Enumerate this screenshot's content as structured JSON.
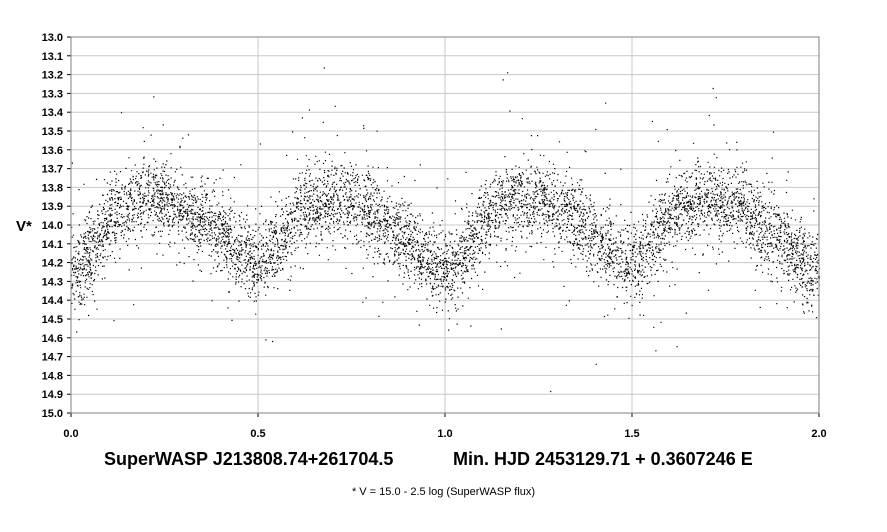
{
  "chart_data": {
    "type": "scatter",
    "title": "SuperWASP J213808.74+261704.5",
    "ephemeris": "Min. HJD 2453129.71 + 0.3607246 E",
    "xlabel": "",
    "ylabel": "V*",
    "footnote": "* V = 15.0 - 2.5 log (SuperWASP flux)",
    "xlim": [
      0.0,
      2.0
    ],
    "ylim": [
      13.0,
      15.0
    ],
    "y_inverted": true,
    "grid": true,
    "x_ticks": [
      "0.0",
      "0.5",
      "1.0",
      "1.5",
      "2.0"
    ],
    "y_ticks": [
      "13.0",
      "13.1",
      "13.2",
      "13.3",
      "13.4",
      "13.5",
      "13.6",
      "13.7",
      "13.8",
      "13.9",
      "14.0",
      "14.1",
      "14.2",
      "14.3",
      "14.4",
      "14.5",
      "14.6",
      "14.7",
      "14.8",
      "14.9",
      "15.0"
    ],
    "marker_color": "#000000",
    "light_curve": {
      "phase": [
        0.0,
        0.05,
        0.1,
        0.15,
        0.2,
        0.25,
        0.3,
        0.35,
        0.4,
        0.45,
        0.5,
        0.55,
        0.6,
        0.65,
        0.7,
        0.75,
        0.8,
        0.85,
        0.9,
        0.95,
        1.0,
        1.05,
        1.1,
        1.15,
        1.2,
        1.25,
        1.3,
        1.35,
        1.4,
        1.45,
        1.5,
        1.55,
        1.6,
        1.65,
        1.7,
        1.75,
        1.8,
        1.85,
        1.9,
        1.95,
        2.0
      ],
      "mean_v": [
        14.26,
        14.14,
        13.98,
        13.9,
        13.86,
        13.87,
        13.92,
        13.98,
        14.06,
        14.14,
        14.2,
        14.1,
        13.96,
        13.89,
        13.86,
        13.88,
        13.93,
        14.0,
        14.08,
        14.18,
        14.26,
        14.14,
        13.98,
        13.9,
        13.86,
        13.87,
        13.92,
        13.98,
        14.06,
        14.14,
        14.2,
        14.1,
        13.96,
        13.89,
        13.86,
        13.88,
        13.93,
        14.0,
        14.08,
        14.18,
        14.26
      ]
    },
    "scatter_sigma": 0.1,
    "point_count": 9000
  }
}
